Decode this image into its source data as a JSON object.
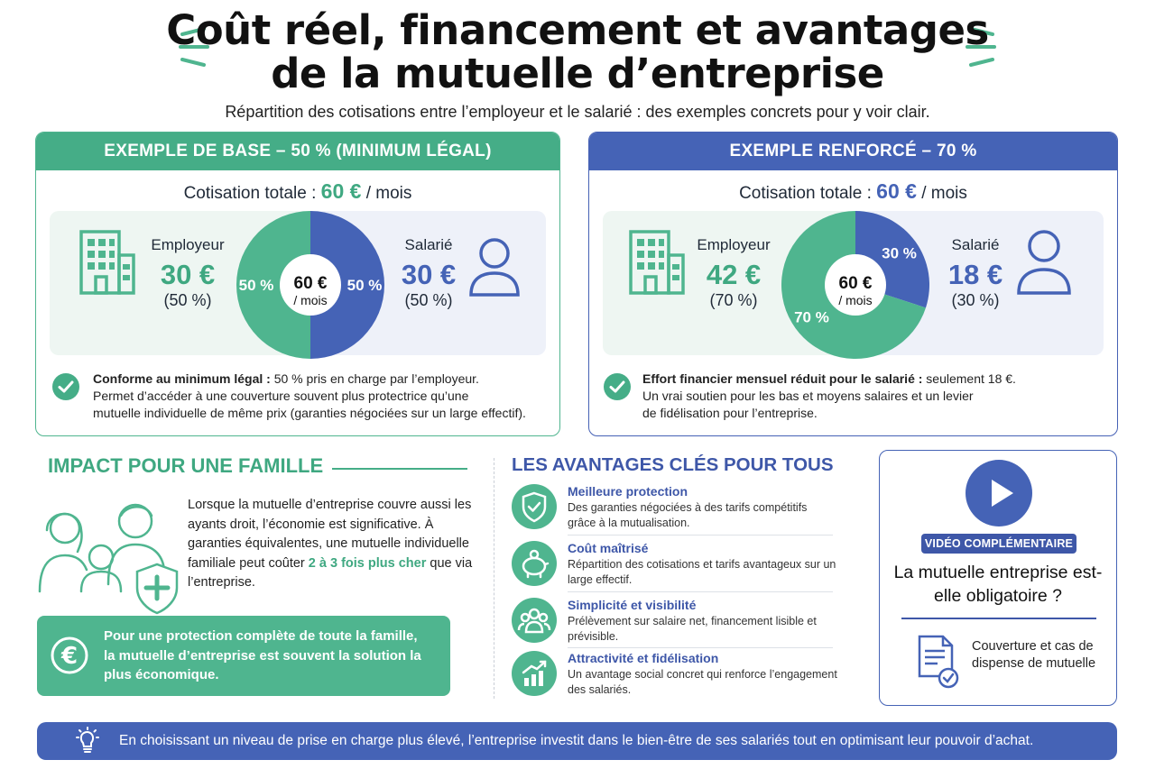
{
  "header": {
    "title_line1": "Coût réel, financement et avantages",
    "title_line2": "de la mutuelle d’entreprise",
    "subtitle": "Répartition des cotisations entre l’employeur et le salarié : des exemples concrets pour y voir clair."
  },
  "colors": {
    "green": "#45ad87",
    "blue": "#4563b6",
    "green_light": "#eef6f2",
    "blue_light": "#eef1f9"
  },
  "example_base": {
    "title": "EXEMPLE DE BASE – 50 % (MINIMUM LÉGAL)",
    "total_label": "Cotisation totale :",
    "total_amount": "60 €",
    "total_unit": "/ mois",
    "employer_label": "Employeur",
    "employer_amount": "30 €",
    "employer_pct": "(50 %)",
    "employee_label": "Salarié",
    "employee_amount": "30 €",
    "employee_pct": "(50 %)",
    "pie_center_amount": "60 €",
    "pie_center_unit": "/ mois",
    "pie_label_employer": "50 %",
    "pie_label_employee": "50 %",
    "note_bold": "Conforme au minimum légal :",
    "note_rest1": " 50 % pris en charge par l’employeur.",
    "note_line2": "Permet d’accéder à une couverture souvent plus protectrice qu’une",
    "note_line3": "mutuelle individuelle de même prix (garanties négociées sur un large effectif)."
  },
  "example_renforce": {
    "title": "EXEMPLE RENFORCÉ – 70 %",
    "total_label": "Cotisation totale :",
    "total_amount": "60 €",
    "total_unit": "/ mois",
    "employer_label": "Employeur",
    "employer_amount": "42 €",
    "employer_pct": "(70 %)",
    "employee_label": "Salarié",
    "employee_amount": "18 €",
    "employee_pct": "(30 %)",
    "pie_center_amount": "60 €",
    "pie_center_unit": "/ mois",
    "pie_label_employer": "70 %",
    "pie_label_employee": "30 %",
    "note_bold": "Effort financier mensuel réduit pour le salarié :",
    "note_rest1": " seulement 18 €.",
    "note_line2": "Un vrai soutien pour les bas et moyens salaires et un levier",
    "note_line3": "de fidélisation pour l’entreprise."
  },
  "chart_data": [
    {
      "type": "pie",
      "categories": [
        "Employeur",
        "Salarié"
      ],
      "values": [
        50,
        50
      ],
      "colors": [
        "#4fb58f",
        "#4563b6"
      ]
    },
    {
      "type": "pie",
      "categories": [
        "Employeur",
        "Salarié"
      ],
      "values": [
        70,
        30
      ],
      "colors": [
        "#4fb58f",
        "#4563b6"
      ]
    }
  ],
  "impact": {
    "title": "IMPACT POUR UNE FAMILLE",
    "text_part1": "Lorsque la mutuelle d’entreprise couvre aussi les ayants droit, l’économie est significative. À garanties équivalentes, une mutuelle individuelle familiale peut coûter ",
    "text_highlight": "2 à 3 fois plus cher",
    "text_part2": " que via l’entreprise.",
    "box_text": "Pour une protection complète de toute la famille, la mutuelle d’entreprise est souvent la solution la plus économique."
  },
  "avantages": {
    "title": "LES AVANTAGES CLÉS POUR TOUS",
    "items": [
      {
        "name": "Meilleure protection",
        "desc": "Des garanties négociées à des tarifs compétitifs grâce à la mutualisation.",
        "icon": "shield-check-icon"
      },
      {
        "name": "Coût maîtrisé",
        "desc": "Répartition des cotisations et tarifs avantageux sur un large effectif.",
        "icon": "piggy-bank-icon"
      },
      {
        "name": "Simplicité et visibilité",
        "desc": "Prélèvement sur salaire net, financement lisible et prévisible.",
        "icon": "group-icon"
      },
      {
        "name": "Attractivité et fidélisation",
        "desc": "Un avantage social concret qui renforce l’engagement des salariés.",
        "icon": "growth-chart-icon"
      }
    ]
  },
  "video": {
    "badge": "VIDÉO COMPLÉMENTAIRE",
    "question": "La mutuelle entreprise est-elle obligatoire ?",
    "doc_text": "Couverture et cas de dispense de mutuelle"
  },
  "footer": {
    "text": "En choisissant un niveau de prise en charge plus élevé, l’entreprise investit dans le bien-être de ses salariés tout en optimisant leur pouvoir d’achat."
  }
}
